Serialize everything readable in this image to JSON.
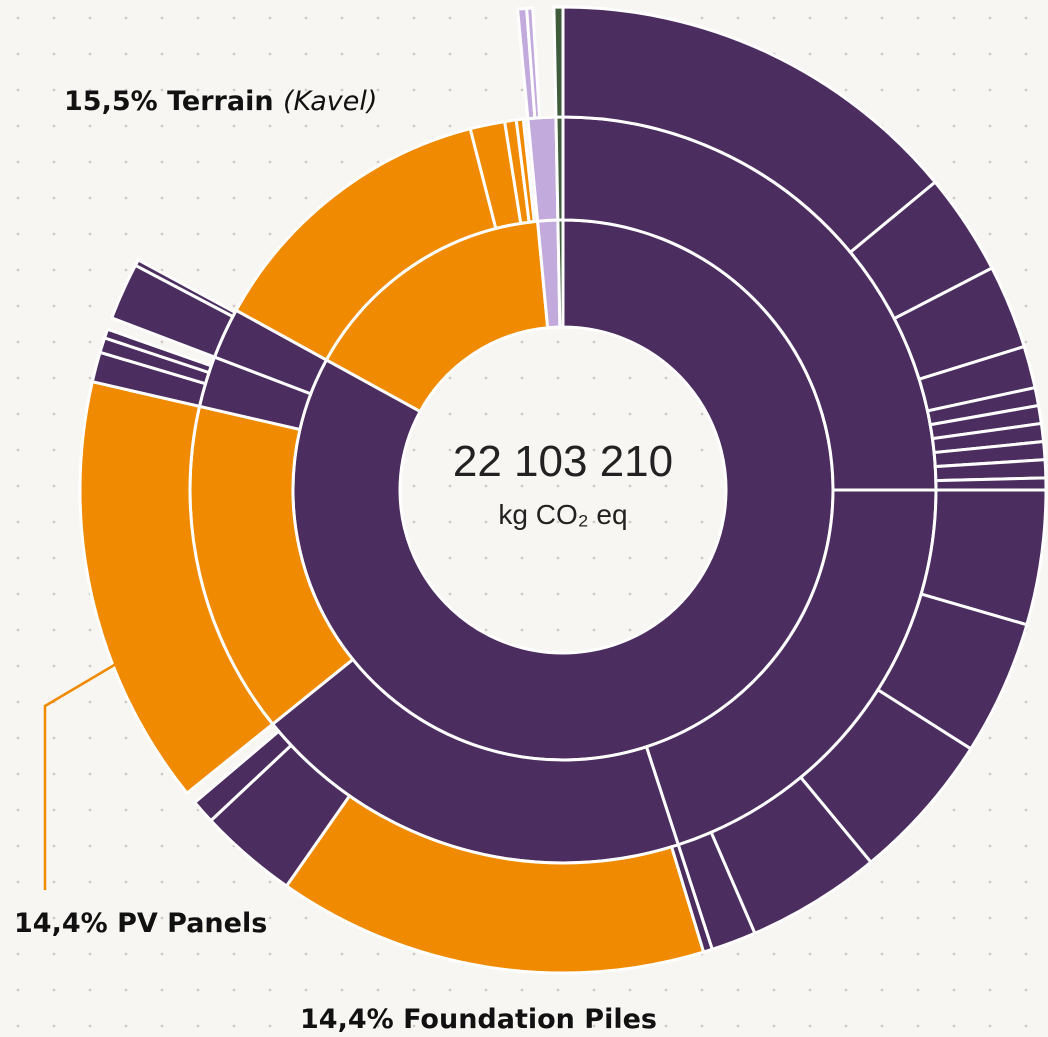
{
  "chart_data": {
    "type": "sunburst",
    "total": 22103210,
    "total_label": "22 103 210",
    "unit": "kg CO₂ eq",
    "annotations": [
      {
        "text": "15,5% Terrain",
        "detail": "(Kavel)"
      },
      {
        "text": "14,4% PV Panels"
      },
      {
        "text": "14,4% Foundation Piles"
      }
    ],
    "segments": [
      {
        "value": 83,
        "color": "#4b2d5f",
        "children": [
          {
            "value": 25,
            "color": "#4b2d5f",
            "children": [
              {
                "value": 14,
                "color": "#4b2d5f"
              },
              {
                "value": 3.4,
                "color": "#4b2d5f"
              },
              {
                "value": 2.8,
                "color": "#4b2d5f"
              },
              {
                "value": 1.4,
                "color": "#4b2d5f"
              },
              {
                "value": 0.6,
                "color": "#4b2d5f"
              },
              {
                "value": 0.6,
                "color": "#4b2d5f"
              },
              {
                "value": 0.6,
                "color": "#4b2d5f"
              },
              {
                "value": 0.6,
                "color": "#4b2d5f"
              },
              {
                "value": 0.6,
                "color": "#4b2d5f"
              },
              {
                "value": 0.4,
                "color": "#4b2d5f"
              }
            ]
          },
          {
            "value": 20,
            "color": "#4b2d5f",
            "children": [
              {
                "value": 4.5,
                "color": "#4b2d5f"
              },
              {
                "value": 4.5,
                "color": "#4b2d5f"
              },
              {
                "value": 5,
                "color": "#4b2d5f"
              },
              {
                "value": 4.5,
                "color": "#4b2d5f"
              },
              {
                "value": 1.5,
                "color": "#4b2d5f"
              }
            ]
          },
          {
            "value": 19.2,
            "color": "#4b2d5f",
            "children": [
              {
                "value": 0.3,
                "color": "#4b2d5f"
              },
              {
                "value": 14.4,
                "color": "#f08a00"
              },
              {
                "value": 3.3,
                "color": "#4b2d5f"
              },
              {
                "value": 0.8,
                "color": "#4b2d5f"
              }
            ]
          },
          {
            "value": 14.4,
            "color": "#f08a00",
            "children": [
              {
                "value": 14.4,
                "color": "#f08a00"
              }
            ]
          },
          {
            "value": 2.2,
            "color": "#4b2d5f",
            "children": [
              {
                "value": 1.0,
                "color": "#4b2d5f"
              },
              {
                "value": 0.5,
                "color": "#4b2d5f"
              },
              {
                "value": 0.3,
                "color": "#4b2d5f"
              }
            ]
          },
          {
            "value": 2.2,
            "color": "#4b2d5f",
            "children": [
              {
                "value": 1.9,
                "color": "#4b2d5f"
              },
              {
                "value": 0.2,
                "color": "#4b2d5f"
              }
            ]
          }
        ]
      },
      {
        "value": 15.5,
        "color": "#f08a00",
        "children": [
          {
            "value": 13,
            "color": "#f08a00"
          },
          {
            "value": 1.5,
            "color": "#f08a00"
          },
          {
            "value": 0.5,
            "color": "#f08a00"
          },
          {
            "value": 0.3,
            "color": "#f08a00"
          }
        ]
      },
      {
        "value": 1.2,
        "color": "#c2aadd",
        "children": [
          {
            "value": 1.2,
            "color": "#c2aadd",
            "children": [
              {
                "value": 0.3,
                "color": "#c2aadd"
              },
              {
                "value": 0.2,
                "color": "#c2aadd"
              }
            ]
          }
        ]
      },
      {
        "value": 0.3,
        "color": "#3e5b3c",
        "children": [
          {
            "value": 0.3,
            "color": "#3e5b3c",
            "children": [
              {
                "value": 0.3,
                "color": "#3e5b3c"
              }
            ]
          }
        ]
      }
    ]
  }
}
